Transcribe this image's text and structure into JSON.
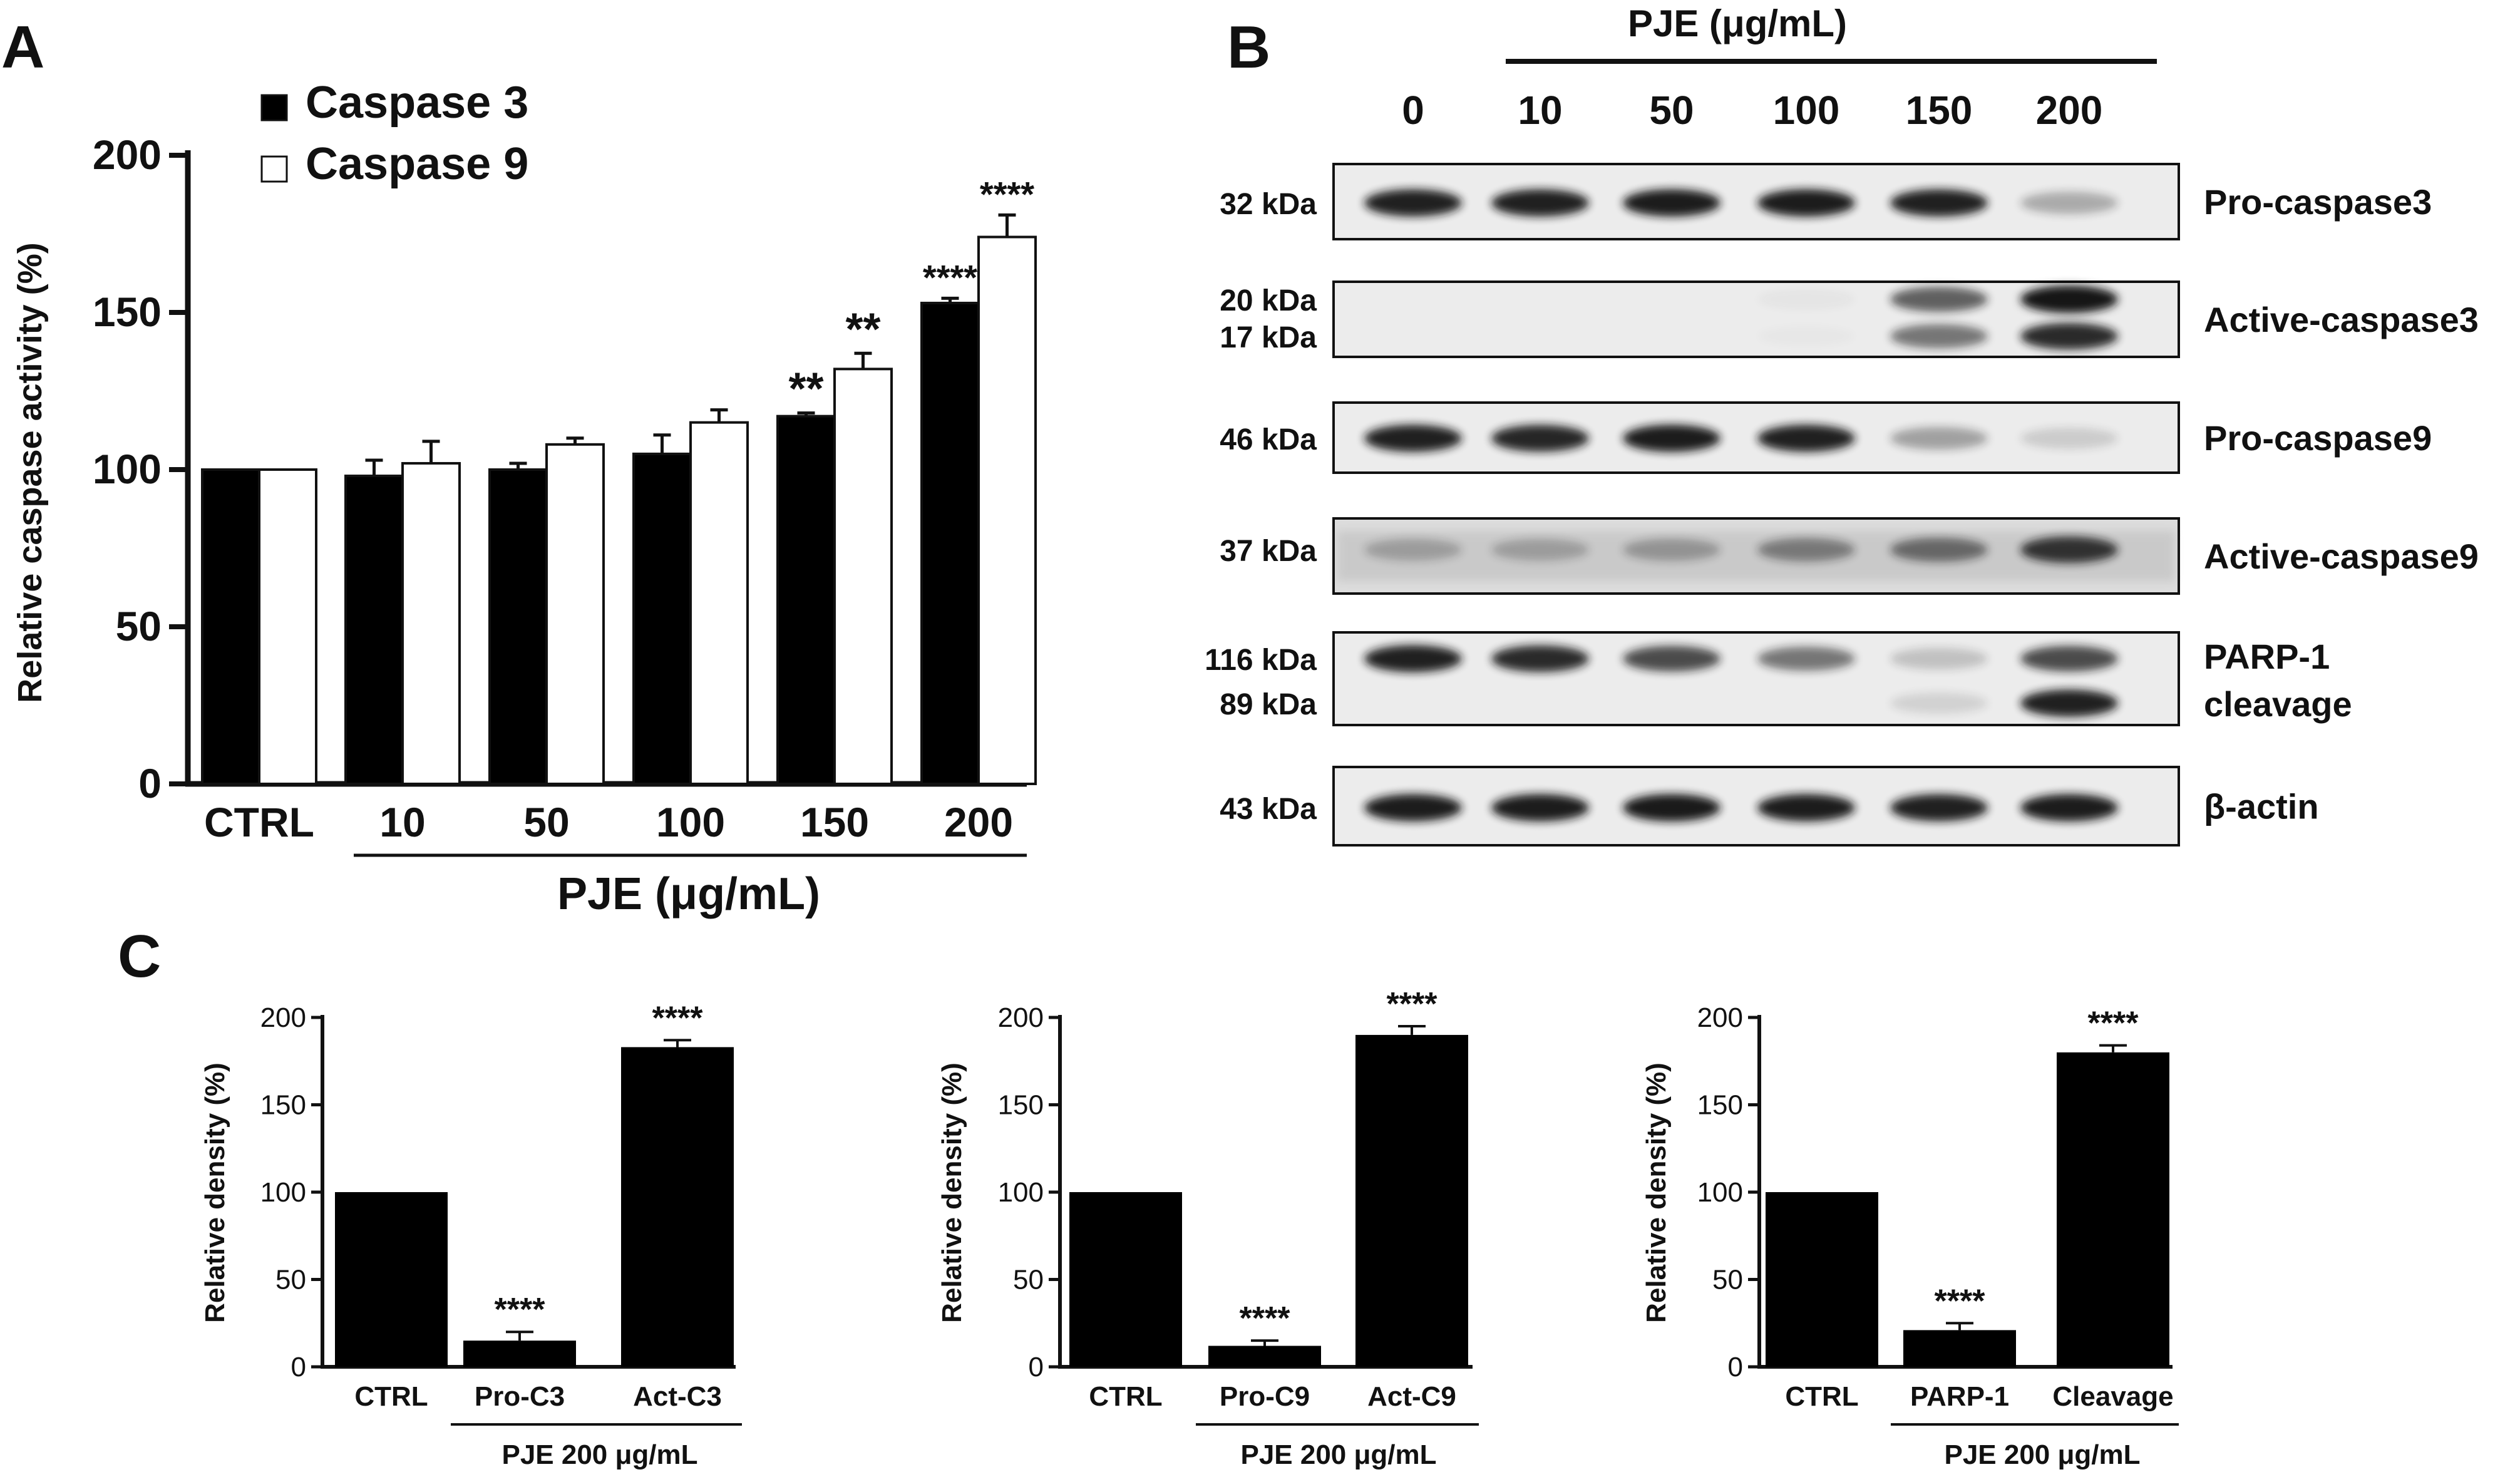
{
  "colors": {
    "ink": "#111111",
    "caspase3_fill": "#000000",
    "caspase9_fill": "#ffffff",
    "blot_bg": "#ececec",
    "band": "#141414"
  },
  "panel_labels": {
    "a": "A",
    "b": "B",
    "c": "C"
  },
  "chart_data": [
    {
      "panel": "A",
      "type": "bar",
      "ylabel": "Relative caspase activity (%)",
      "xlabel": "PJE (μg/mL)",
      "ylim": [
        0,
        200
      ],
      "yticks": [
        "0",
        "50",
        "100",
        "150",
        "200"
      ],
      "categories": [
        "CTRL",
        "10",
        "50",
        "100",
        "150",
        "200"
      ],
      "series": [
        {
          "name": "Caspase 3",
          "fill": "#000000",
          "values": [
            100,
            98,
            100,
            105,
            117,
            153
          ],
          "errors": [
            0,
            5,
            2,
            6,
            1,
            1.5
          ],
          "sig": [
            "",
            "",
            "",
            "",
            "**",
            "****"
          ]
        },
        {
          "name": "Caspase 9",
          "fill": "#ffffff",
          "values": [
            100,
            102,
            108,
            115,
            132,
            174
          ],
          "errors": [
            0,
            7,
            2,
            4,
            5,
            7
          ],
          "sig": [
            "",
            "",
            "",
            "",
            "**",
            "****"
          ]
        }
      ],
      "legend": "top-left"
    },
    {
      "panel": "C1",
      "type": "bar",
      "ylabel": "Relative density (%)",
      "xlabel": "PJE 200 μg/mL",
      "ylim": [
        0,
        200
      ],
      "yticks": [
        "0",
        "50",
        "100",
        "150",
        "200"
      ],
      "categories": [
        "CTRL",
        "Pro-C3",
        "Act-C3"
      ],
      "values": [
        100,
        15,
        183
      ],
      "errors": [
        0,
        5,
        4
      ],
      "sig": [
        "",
        "****",
        "****"
      ]
    },
    {
      "panel": "C2",
      "type": "bar",
      "ylabel": "Relative density (%)",
      "xlabel": "PJE 200 μg/mL",
      "ylim": [
        0,
        200
      ],
      "yticks": [
        "0",
        "50",
        "100",
        "150",
        "200"
      ],
      "categories": [
        "CTRL",
        "Pro-C9",
        "Act-C9"
      ],
      "values": [
        100,
        12,
        190
      ],
      "errors": [
        0,
        3,
        5
      ],
      "sig": [
        "",
        "****",
        "****"
      ]
    },
    {
      "panel": "C3",
      "type": "bar",
      "ylabel": "Relative density (%)",
      "xlabel": "PJE 200 μg/mL",
      "ylim": [
        0,
        200
      ],
      "yticks": [
        "0",
        "50",
        "100",
        "150",
        "200"
      ],
      "categories": [
        "CTRL",
        "PARP-1",
        "Cleavage"
      ],
      "values": [
        100,
        21,
        180
      ],
      "errors": [
        0,
        4,
        4
      ],
      "sig": [
        "",
        "****",
        "****"
      ]
    }
  ],
  "blot": {
    "header": "PJE (μg/mL)",
    "lanes": [
      "0",
      "10",
      "50",
      "100",
      "150",
      "200"
    ],
    "rows": [
      {
        "name": "Pro-caspase3",
        "kda": [
          "32 kDa"
        ],
        "intensity": [
          [
            0.95,
            0.95,
            0.97,
            0.97,
            0.95,
            0.3
          ]
        ],
        "smear": 0.0
      },
      {
        "name": "Active-caspase3",
        "kda": [
          "20 kDa",
          "17 kDa"
        ],
        "intensity": [
          [
            0,
            0,
            0,
            0.03,
            0.65,
            1.0
          ],
          [
            0,
            0,
            0,
            0.02,
            0.55,
            0.9
          ]
        ],
        "smear": 0.0
      },
      {
        "name": "Pro-caspase9",
        "kda": [
          "46 kDa"
        ],
        "intensity": [
          [
            0.95,
            0.92,
            0.97,
            0.95,
            0.35,
            0.15
          ]
        ],
        "smear": 0.0
      },
      {
        "name": "Active-caspase9",
        "kda": [
          "37 kDa"
        ],
        "intensity": [
          [
            0.25,
            0.25,
            0.3,
            0.45,
            0.55,
            0.85
          ]
        ],
        "smear": 0.35
      },
      {
        "name": "PARP-1 cleavage",
        "label_lines": [
          "PARP-1",
          "cleavage"
        ],
        "kda": [
          "116 kDa",
          "89 kDa"
        ],
        "intensity": [
          [
            0.95,
            0.9,
            0.75,
            0.55,
            0.2,
            0.75
          ],
          [
            0,
            0,
            0,
            0,
            0.12,
            0.95
          ]
        ],
        "smear": 0.0
      },
      {
        "name": "β-actin",
        "kda": [
          "43 kDa"
        ],
        "intensity": [
          [
            0.97,
            0.97,
            0.98,
            0.97,
            0.95,
            0.97
          ]
        ],
        "smear": 0.0
      }
    ]
  }
}
